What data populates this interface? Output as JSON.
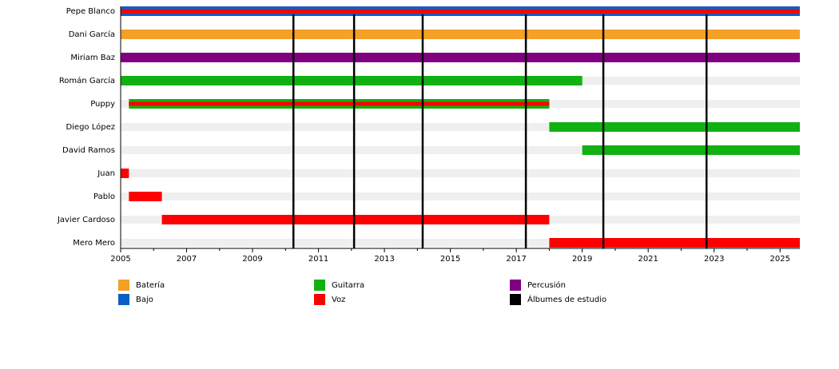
{
  "chart_data": {
    "type": "timeline",
    "categories": [
      "Pepe Blanco",
      "Dani García",
      "Miriam Baz",
      "Román García",
      "Puppy",
      "Diego López",
      "David Ramos",
      "Juan",
      "Pablo",
      "Javier Cardoso",
      "Mero Mero"
    ],
    "series": [
      {
        "name": "Batería",
        "color": "#f5a027",
        "values": [
          null,
          [
            2005,
            2025.6
          ],
          null,
          null,
          null,
          null,
          null,
          null,
          null,
          null,
          null
        ]
      },
      {
        "name": "Bajo",
        "color": "#0a5fc4",
        "values": [
          [
            2005,
            2025.6
          ],
          null,
          null,
          null,
          null,
          null,
          null,
          null,
          null,
          null,
          null
        ]
      },
      {
        "name": "Guitarra",
        "color": "#12b112",
        "values": [
          null,
          null,
          null,
          [
            2005,
            2019
          ],
          [
            2005.25,
            2018
          ],
          [
            2018,
            2025.6
          ],
          [
            2019,
            2025.6
          ],
          null,
          null,
          null,
          null
        ]
      },
      {
        "name": "Voz",
        "color": "#ff0000",
        "values": [
          [
            2005,
            2025.6
          ],
          null,
          null,
          null,
          [
            2005.25,
            2018
          ],
          null,
          null,
          [
            2005,
            2005.25
          ],
          [
            2005.25,
            2006.25
          ],
          [
            2006.25,
            2018
          ],
          [
            2018,
            2025.6
          ]
        ]
      },
      {
        "name": "Percusión",
        "color": "#800080",
        "values": [
          null,
          null,
          [
            2005,
            2025.6
          ],
          null,
          null,
          null,
          null,
          null,
          null,
          null,
          null
        ]
      }
    ],
    "albums": {
      "name": "Álbumes de estudio",
      "color": "#000000",
      "values": [
        2010.24,
        2012.08,
        2014.16,
        2017.29,
        2019.64,
        2022.77
      ]
    },
    "xlim": [
      2005,
      2025.6
    ],
    "xticks": [
      2005,
      2007,
      2009,
      2011,
      2013,
      2015,
      2017,
      2019,
      2021,
      2023,
      2025
    ],
    "minor_xticks": [
      2006,
      2008,
      2010,
      2012,
      2014,
      2016,
      2018,
      2020,
      2022,
      2024
    ]
  }
}
